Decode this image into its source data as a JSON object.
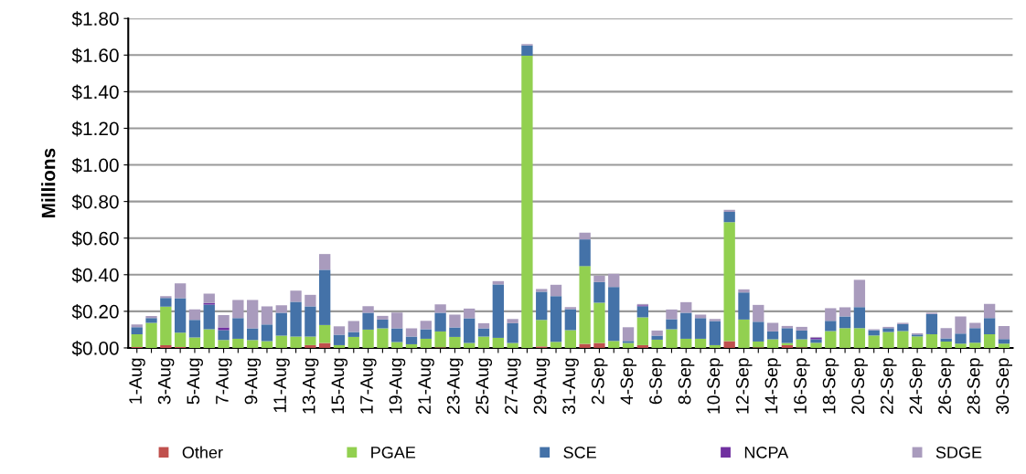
{
  "chart_data": {
    "type": "bar",
    "stacked": true,
    "ylabel": "Millions",
    "categories": [
      "1-Aug",
      null,
      "3-Aug",
      null,
      "5-Aug",
      null,
      "7-Aug",
      null,
      "9-Aug",
      null,
      "11-Aug",
      null,
      "13-Aug",
      null,
      "15-Aug",
      null,
      "17-Aug",
      null,
      "19-Aug",
      null,
      "21-Aug",
      null,
      "23-Aug",
      null,
      "25-Aug",
      null,
      "27-Aug",
      null,
      "29-Aug",
      null,
      "31-Aug",
      null,
      "2-Sep",
      null,
      "4-Sep",
      null,
      "6-Sep",
      null,
      "8-Sep",
      null,
      "10-Sep",
      null,
      "12-Sep",
      null,
      "14-Sep",
      null,
      "16-Sep",
      null,
      "18-Sep",
      null,
      "20-Sep",
      null,
      "22-Sep",
      null,
      "24-Sep",
      null,
      "26-Sep",
      null,
      "28-Sep",
      null,
      "30-Sep"
    ],
    "series": [
      {
        "name": "Other",
        "color": "#c0504d",
        "values": [
          0.005,
          0,
          0.015,
          0.005,
          0,
          0,
          0,
          0,
          0,
          0,
          0,
          0,
          0.015,
          0.027,
          0,
          0,
          0,
          0,
          0,
          0,
          0,
          0.003,
          0,
          0,
          0,
          0,
          0,
          0,
          0.008,
          0,
          0,
          0.022,
          0.027,
          0,
          0,
          0.015,
          0,
          0,
          0,
          0,
          0,
          0.037,
          0,
          0.003,
          0,
          0.015,
          0.003,
          0,
          0,
          0,
          0,
          0,
          0,
          0,
          0,
          0,
          0,
          0,
          0,
          0,
          0
        ]
      },
      {
        "name": "PGAE",
        "color": "#92d050",
        "values": [
          0.07,
          0.137,
          0.21,
          0.078,
          0.057,
          0.102,
          0.043,
          0.05,
          0.043,
          0.037,
          0.067,
          0.062,
          0.047,
          0.098,
          0.015,
          0.06,
          0.1,
          0.107,
          0.032,
          0.02,
          0.05,
          0.087,
          0.06,
          0.027,
          0.062,
          0.055,
          0.027,
          1.597,
          0.145,
          0.033,
          0.097,
          0.425,
          0.22,
          0.038,
          0.027,
          0.152,
          0.045,
          0.102,
          0.05,
          0.05,
          0.015,
          0.65,
          0.155,
          0.032,
          0.047,
          0.012,
          0.044,
          0.028,
          0.092,
          0.108,
          0.108,
          0.068,
          0.087,
          0.092,
          0.063,
          0.075,
          0.035,
          0.023,
          0.028,
          0.075,
          0.023
        ]
      },
      {
        "name": "SCE",
        "color": "#4472a8",
        "values": [
          0.038,
          0.026,
          0.048,
          0.189,
          0.096,
          0.135,
          0.054,
          0.113,
          0.064,
          0.091,
          0.125,
          0.19,
          0.165,
          0.302,
          0.057,
          0.027,
          0.092,
          0.048,
          0.075,
          0.042,
          0.052,
          0.102,
          0.052,
          0.135,
          0.045,
          0.292,
          0.108,
          0.056,
          0.154,
          0.25,
          0.115,
          0.146,
          0.113,
          0.295,
          0.011,
          0.061,
          0.022,
          0.055,
          0.142,
          0.113,
          0.132,
          0.056,
          0.148,
          0.108,
          0.043,
          0.081,
          0.048,
          0.019,
          0.056,
          0.064,
          0.115,
          0.029,
          0.021,
          0.038,
          0.01,
          0.11,
          0.017,
          0.055,
          0.08,
          0.088,
          0.025
        ]
      },
      {
        "name": "NCPA",
        "color": "#7030a0",
        "values": [
          0,
          0,
          0,
          0,
          0,
          0.008,
          0.015,
          0,
          0,
          0,
          0,
          0,
          0,
          0,
          0,
          0,
          0,
          0,
          0,
          0,
          0,
          0,
          0,
          0,
          0,
          0,
          0,
          0,
          0,
          0,
          0,
          0,
          0,
          0,
          0,
          0.005,
          0,
          0,
          0,
          0,
          0,
          0,
          0,
          0,
          0,
          0,
          0,
          0.008,
          0,
          0,
          0,
          0,
          0,
          0,
          0,
          0,
          0,
          0,
          0,
          0,
          0
        ]
      },
      {
        "name": "SDGE",
        "color": "#a99bbd",
        "values": [
          0.015,
          0.012,
          0.01,
          0.081,
          0.057,
          0.052,
          0.068,
          0.099,
          0.155,
          0.099,
          0.041,
          0.061,
          0.063,
          0.086,
          0.046,
          0.06,
          0.036,
          0.02,
          0.086,
          0.045,
          0.046,
          0.046,
          0.07,
          0.053,
          0.028,
          0.018,
          0.023,
          0.007,
          0.015,
          0.062,
          0.011,
          0.037,
          0.035,
          0.072,
          0.075,
          0.007,
          0.028,
          0.053,
          0.058,
          0.019,
          0.011,
          0.012,
          0.017,
          0.092,
          0.047,
          0.012,
          0.02,
          0.005,
          0.069,
          0.05,
          0.149,
          0.005,
          0.007,
          0.007,
          0.007,
          0.007,
          0.056,
          0.094,
          0.029,
          0.077,
          0.072
        ]
      }
    ],
    "ylim": [
      0,
      1.8
    ],
    "yticks": [
      {
        "value": 0,
        "label": "$0.00"
      },
      {
        "value": 0.2,
        "label": "$0.20"
      },
      {
        "value": 0.4,
        "label": "$0.40"
      },
      {
        "value": 0.6,
        "label": "$0.60"
      },
      {
        "value": 0.8,
        "label": "$0.80"
      },
      {
        "value": 1.0,
        "label": "$1.00"
      },
      {
        "value": 1.2,
        "label": "$1.20"
      },
      {
        "value": 1.4,
        "label": "$1.40"
      },
      {
        "value": 1.6,
        "label": "$1.60"
      },
      {
        "value": 1.8,
        "label": "$1.80"
      }
    ],
    "grid": "y",
    "legend": "bottom"
  }
}
